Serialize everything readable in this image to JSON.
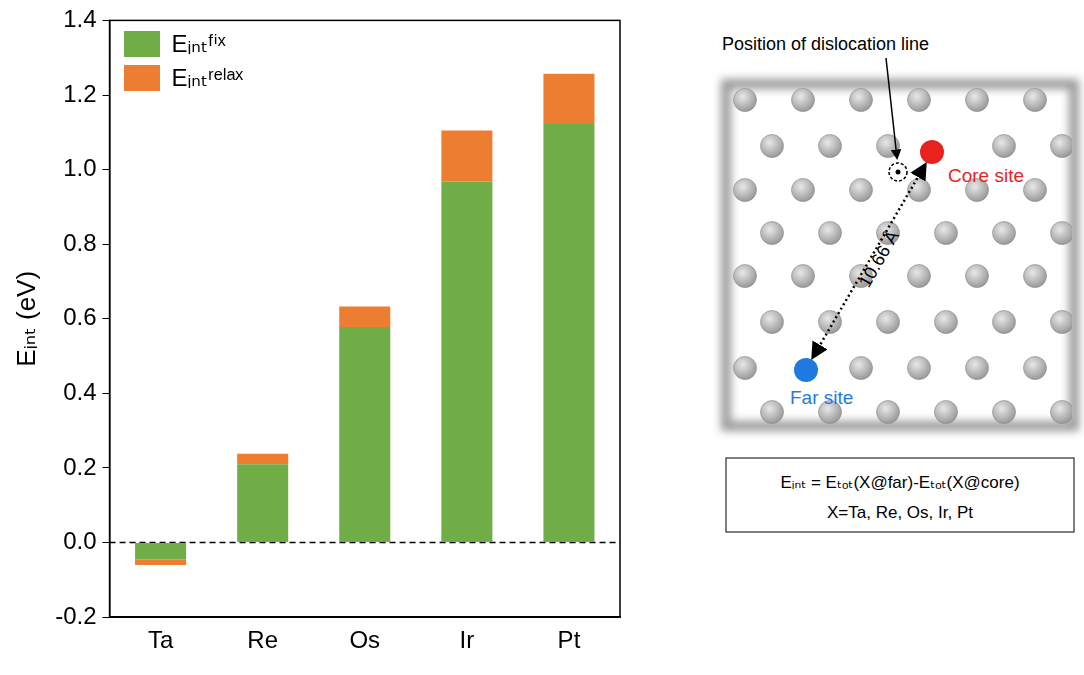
{
  "chart_data": {
    "type": "bar",
    "stacked": true,
    "ylabel": "Eᵢₙₜ (eV)",
    "categories": [
      "Ta",
      "Re",
      "Os",
      "Ir",
      "Pt"
    ],
    "series": [
      {
        "name": "Eᵢₙₜᶠⁱˣ",
        "color": "#70ad47",
        "values": [
          -0.045,
          0.21,
          0.578,
          0.968,
          1.122
        ]
      },
      {
        "name": "Eᵢₙₜʳᵉˡᵃˣ",
        "color": "#ed7d31",
        "values": [
          -0.015,
          0.028,
          0.055,
          0.137,
          0.135
        ]
      }
    ],
    "ylim": [
      -0.2,
      1.4
    ],
    "yticks": [
      -0.2,
      {
        "value": 0,
        "label": "0.0"
      },
      0.2,
      0.4,
      0.6,
      0.8,
      {
        "value": 1,
        "label": "1.0"
      },
      1.2,
      1.4
    ],
    "grid": false,
    "legend": "upper left"
  },
  "diagram": {
    "annotation": "Position of dislocation line",
    "core_label": "Core site",
    "far_label": "Far site",
    "distance_label": "10.66 Å",
    "formula": [
      "Eᵢₙₜ = Eₜₒₜ(X@far)-Eₜₒₜ(X@core)",
      "X=Ta, Re, Os, Ir, Pt"
    ]
  }
}
